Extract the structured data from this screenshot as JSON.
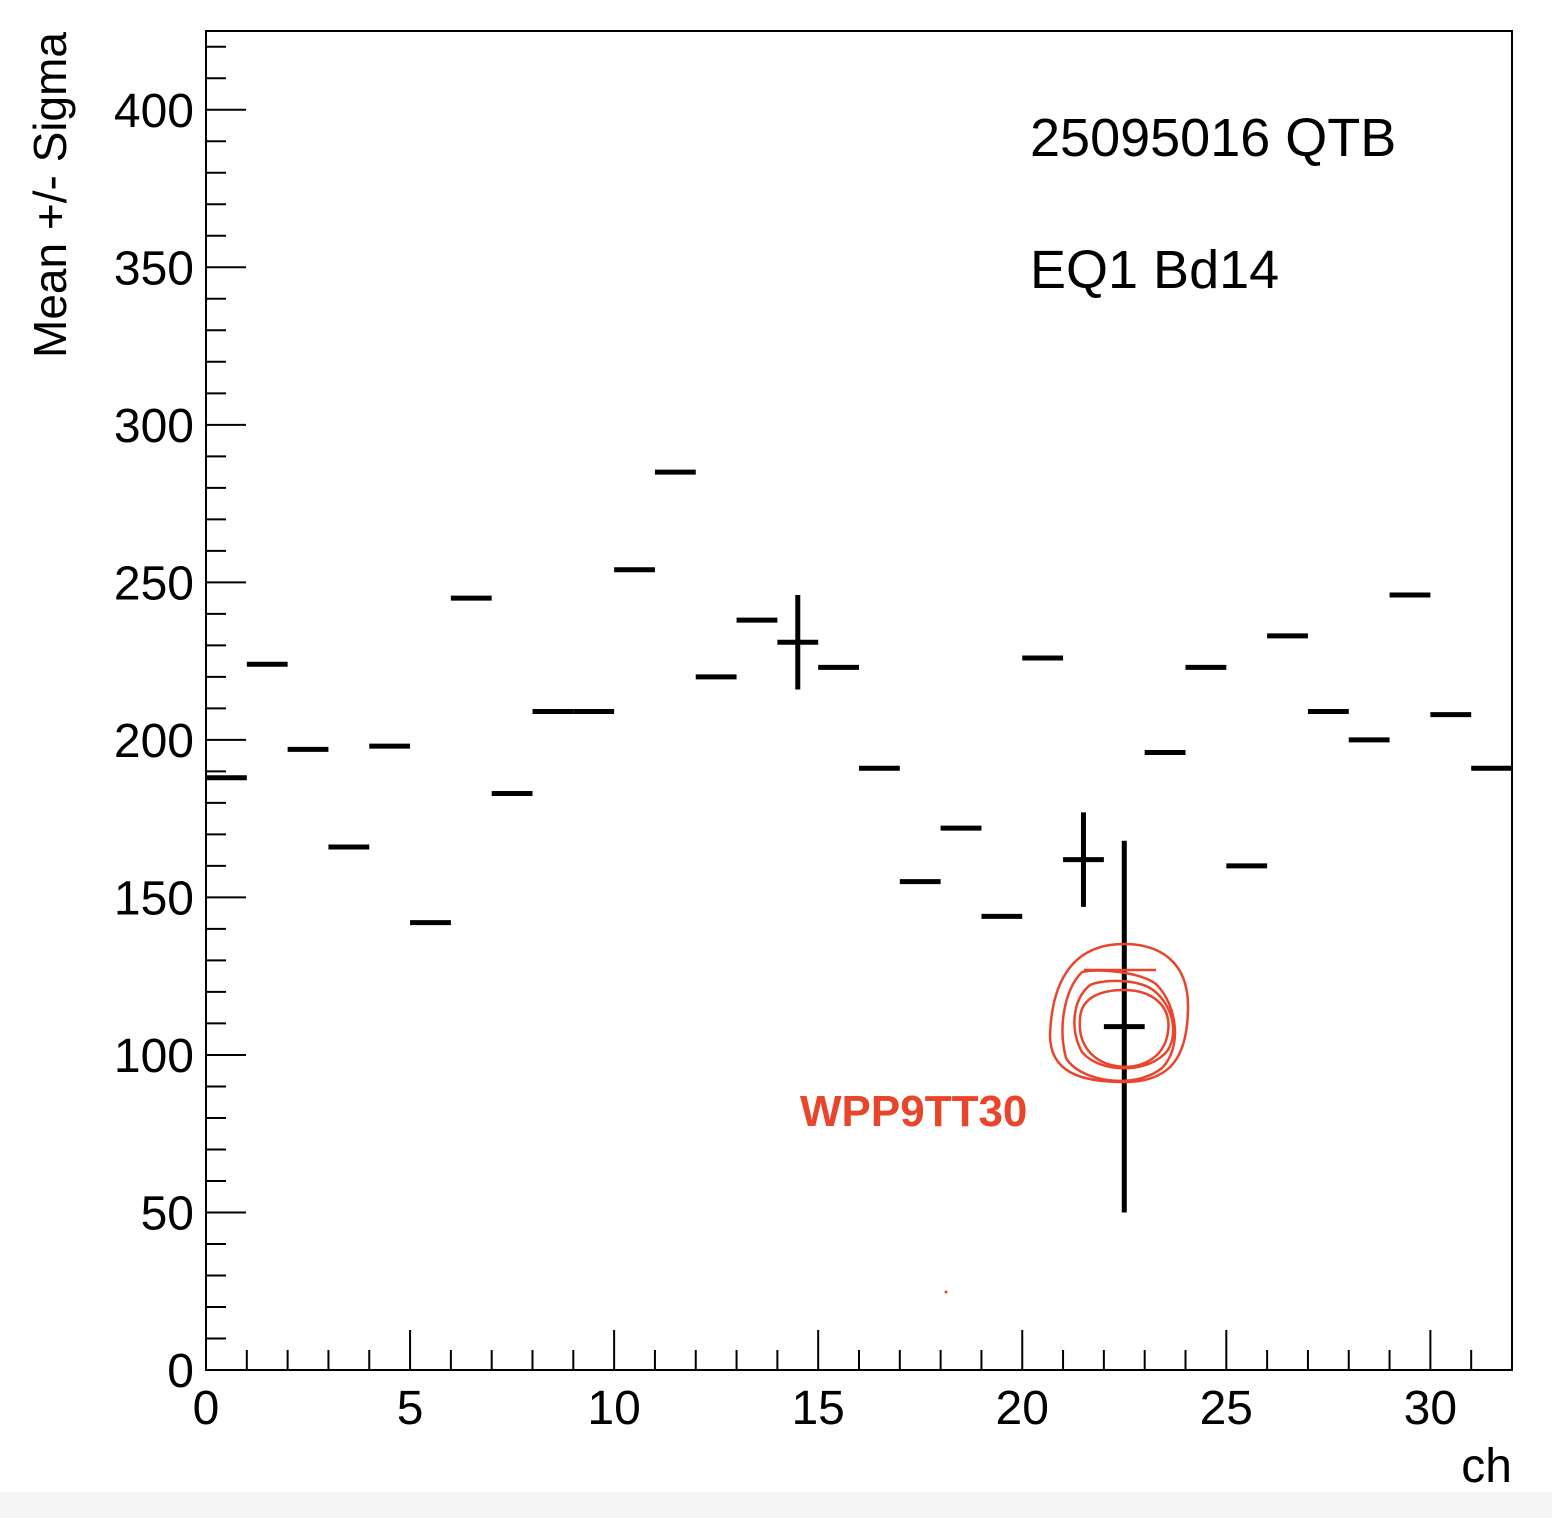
{
  "chart_data": {
    "type": "scatter",
    "xlabel": "ch",
    "ylabel": "Mean +/- Sigma",
    "xlim": [
      0,
      32
    ],
    "ylim": [
      0,
      425
    ],
    "x_ticks": [
      0,
      5,
      10,
      15,
      20,
      25,
      30
    ],
    "y_ticks": [
      0,
      50,
      100,
      150,
      200,
      250,
      300,
      350,
      400
    ],
    "grid": false,
    "annotations": [
      "25095016 QTB",
      "EQ1 Bd14"
    ],
    "points": [
      {
        "x": 0.5,
        "y": 188,
        "sigma": 0
      },
      {
        "x": 1.5,
        "y": 224,
        "sigma": 0
      },
      {
        "x": 2.5,
        "y": 197,
        "sigma": 0
      },
      {
        "x": 3.5,
        "y": 166,
        "sigma": 0
      },
      {
        "x": 4.5,
        "y": 198,
        "sigma": 0
      },
      {
        "x": 5.5,
        "y": 142,
        "sigma": 0
      },
      {
        "x": 6.5,
        "y": 245,
        "sigma": 0
      },
      {
        "x": 7.5,
        "y": 183,
        "sigma": 0
      },
      {
        "x": 8.5,
        "y": 209,
        "sigma": 0
      },
      {
        "x": 9.5,
        "y": 209,
        "sigma": 0
      },
      {
        "x": 10.5,
        "y": 254,
        "sigma": 0
      },
      {
        "x": 11.5,
        "y": 285,
        "sigma": 0
      },
      {
        "x": 12.5,
        "y": 220,
        "sigma": 0
      },
      {
        "x": 13.5,
        "y": 238,
        "sigma": 0
      },
      {
        "x": 14.5,
        "y": 231,
        "sigma": 15
      },
      {
        "x": 15.5,
        "y": 223,
        "sigma": 0
      },
      {
        "x": 16.5,
        "y": 191,
        "sigma": 0
      },
      {
        "x": 17.5,
        "y": 155,
        "sigma": 0
      },
      {
        "x": 18.5,
        "y": 172,
        "sigma": 0
      },
      {
        "x": 19.5,
        "y": 144,
        "sigma": 0
      },
      {
        "x": 20.5,
        "y": 226,
        "sigma": 0
      },
      {
        "x": 21.5,
        "y": 162,
        "sigma": 15
      },
      {
        "x": 22.5,
        "y": 109,
        "sigma": 59
      },
      {
        "x": 23.5,
        "y": 196,
        "sigma": 0
      },
      {
        "x": 24.5,
        "y": 223,
        "sigma": 0
      },
      {
        "x": 25.5,
        "y": 160,
        "sigma": 0
      },
      {
        "x": 26.5,
        "y": 233,
        "sigma": 0
      },
      {
        "x": 27.5,
        "y": 209,
        "sigma": 0
      },
      {
        "x": 28.5,
        "y": 200,
        "sigma": 0
      },
      {
        "x": 29.5,
        "y": 246,
        "sigma": 0
      },
      {
        "x": 30.5,
        "y": 208,
        "sigma": 0
      },
      {
        "x": 31.5,
        "y": 191,
        "sigma": 0
      }
    ],
    "highlight": {
      "label": "WPP9TT30",
      "x": 22.5,
      "y": 109,
      "color": "#e8452c"
    }
  }
}
